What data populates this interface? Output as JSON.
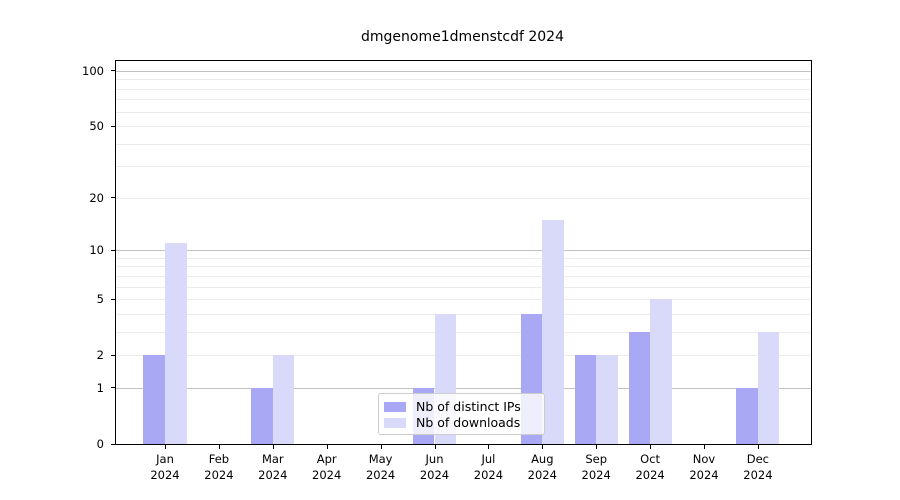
{
  "chart_data": {
    "type": "bar",
    "title": "dmgenome1dmenstcdf 2024",
    "months": [
      "Jan",
      "Feb",
      "Mar",
      "Apr",
      "May",
      "Jun",
      "Jul",
      "Aug",
      "Sep",
      "Oct",
      "Nov",
      "Dec"
    ],
    "year_label": "2024",
    "series": [
      {
        "name": "Nb of distinct IPs",
        "color": "#a8a8f5",
        "values": [
          2,
          0,
          1,
          0,
          0,
          1,
          0,
          4,
          2,
          3,
          0,
          1
        ]
      },
      {
        "name": "Nb of downloads",
        "color": "#d9d9fa",
        "values": [
          11,
          0,
          2,
          0,
          0,
          4,
          0,
          15,
          2,
          5,
          0,
          3
        ]
      }
    ],
    "yscale": "log1p",
    "yticks": [
      0,
      1,
      2,
      5,
      10,
      20,
      50,
      100
    ],
    "ylim": [
      0,
      113
    ],
    "grid": true,
    "grid_major_color": "#c2c2c2",
    "grid_minor_color": "#ebebeb",
    "legend_position": "lower center"
  }
}
